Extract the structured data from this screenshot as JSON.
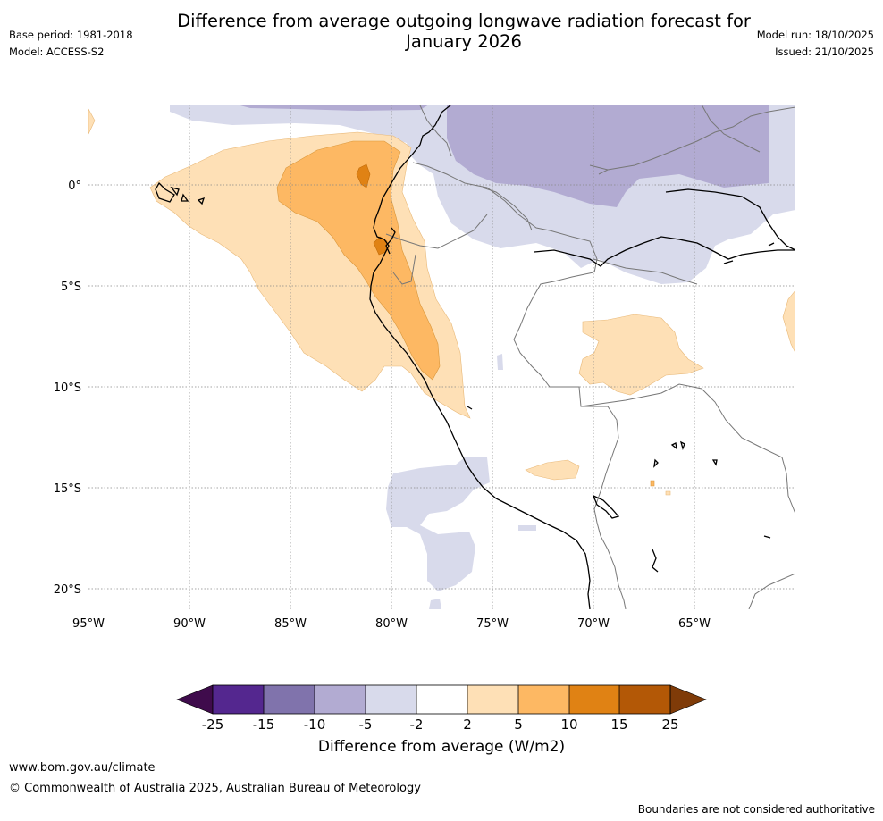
{
  "header": {
    "title_line1": "Difference from average outgoing longwave radiation forecast for",
    "title_line2": "January 2026",
    "base_period": "Base period: 1981-2018",
    "model": "Model: ACCESS-S2",
    "model_run": "Model run: 18/10/2025",
    "issued": "Issued: 21/10/2025"
  },
  "map": {
    "lon_labels": [
      "95°W",
      "90°W",
      "85°W",
      "80°W",
      "75°W",
      "70°W",
      "65°W"
    ],
    "lat_labels": [
      "0°",
      "5°S",
      "10°S",
      "15°S",
      "20°S"
    ],
    "colors": {
      "neg_25": "#3f0b4c",
      "neg_15_25": "#54278f",
      "neg_10_15": "#8073ac",
      "neg_5_10": "#b2abd2",
      "neg_2_5": "#d8daeb",
      "neutral": "#ffffff",
      "pos_2_5": "#fee0b6",
      "pos_5_10": "#fdb863",
      "pos_10_15": "#e08214",
      "pos_15_25": "#b35806",
      "pos_25": "#7f3b08"
    }
  },
  "colorbar": {
    "ticks": [
      "-25",
      "-15",
      "-10",
      "-5",
      "-2",
      "2",
      "5",
      "10",
      "15",
      "25"
    ],
    "label": "Difference from average (W/m2)"
  },
  "footer": {
    "website": "www.bom.gov.au/climate",
    "copyright": "© Commonwealth of Australia 2025, Australian Bureau of Meteorology",
    "disclaimer": "Boundaries are not considered authoritative"
  }
}
